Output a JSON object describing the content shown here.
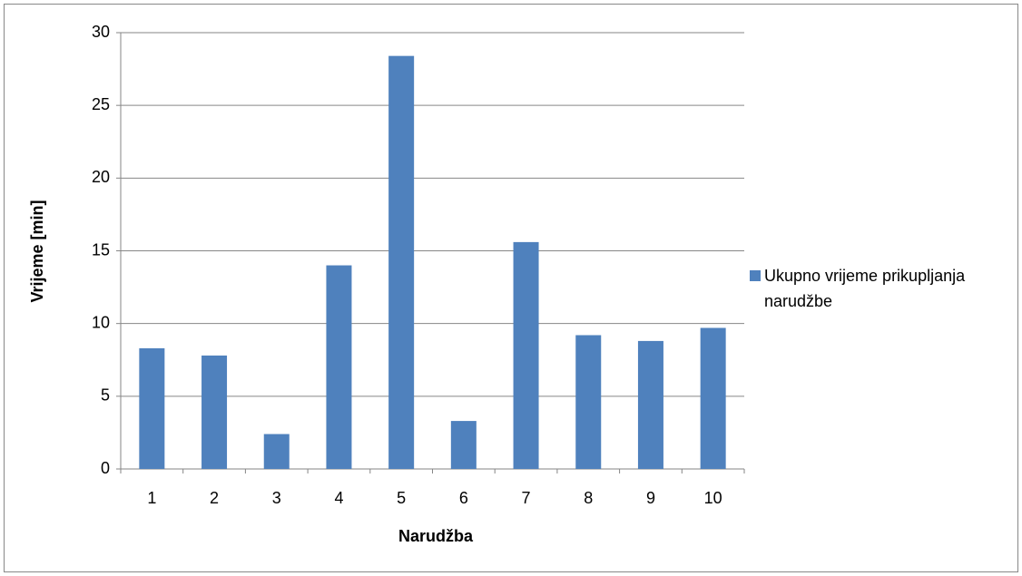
{
  "chart_data": {
    "type": "bar",
    "x_label": "Narudžba",
    "y_label": "Vrijeme [min]",
    "categories": [
      "1",
      "2",
      "3",
      "4",
      "5",
      "6",
      "7",
      "8",
      "9",
      "10"
    ],
    "series": [
      {
        "name": "Ukupno vrijeme prikupljanja narudžbe",
        "color": "#4f81bd",
        "values": [
          8.3,
          7.8,
          2.4,
          14.0,
          28.4,
          3.3,
          15.6,
          9.2,
          8.8,
          9.7
        ]
      }
    ],
    "ylim": [
      0,
      30
    ],
    "yticks": [
      0,
      5,
      10,
      15,
      20,
      25,
      30
    ],
    "grid": true,
    "legend": "right"
  }
}
